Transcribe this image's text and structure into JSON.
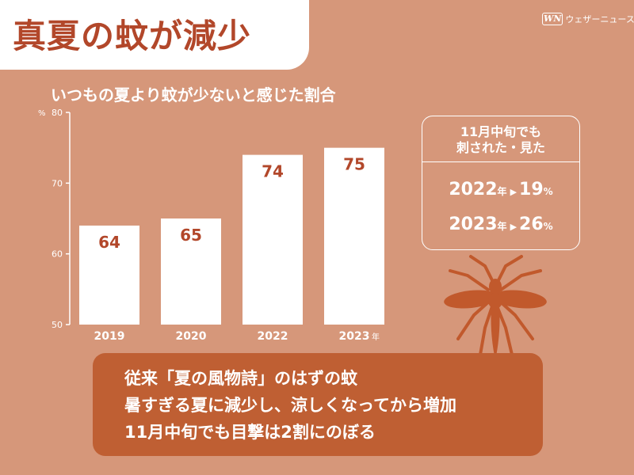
{
  "title": "真夏の蚊が減少",
  "brand": {
    "mark": "WN",
    "name": "ウェザーニュース"
  },
  "subtitle": "いつもの夏より蚊が少ないと感じた割合",
  "chart_data": {
    "type": "bar",
    "title": "いつもの夏より蚊が少ないと感じた割合",
    "y_unit": "%",
    "x_unit": "年",
    "ylim": [
      50,
      80
    ],
    "yticks": [
      50,
      60,
      70,
      80
    ],
    "categories": [
      "2019",
      "2020",
      "2022",
      "2023"
    ],
    "values": [
      64,
      65,
      74,
      75
    ],
    "bar_color": "#ffffff",
    "label_color": "#b2472a"
  },
  "info": {
    "heading_line1": "11月中旬でも",
    "heading_line2": "刺された・見た",
    "rows": [
      {
        "year": "2022",
        "year_unit": "年",
        "arrow": "▶",
        "value": "19",
        "value_unit": "%"
      },
      {
        "year": "2023",
        "year_unit": "年",
        "arrow": "▶",
        "value": "26",
        "value_unit": "%"
      }
    ]
  },
  "message": {
    "line1": "従来「夏の風物詩」のはずの蚊",
    "line2": "暑すぎる夏に減少し、涼しくなってから増加",
    "line3": "11月中旬でも目撃は2割にのぼる"
  },
  "colors": {
    "background": "#d6977a",
    "title_red": "#b2472a",
    "message_box": "#bf5f33",
    "mosquito": "#c1592c"
  }
}
